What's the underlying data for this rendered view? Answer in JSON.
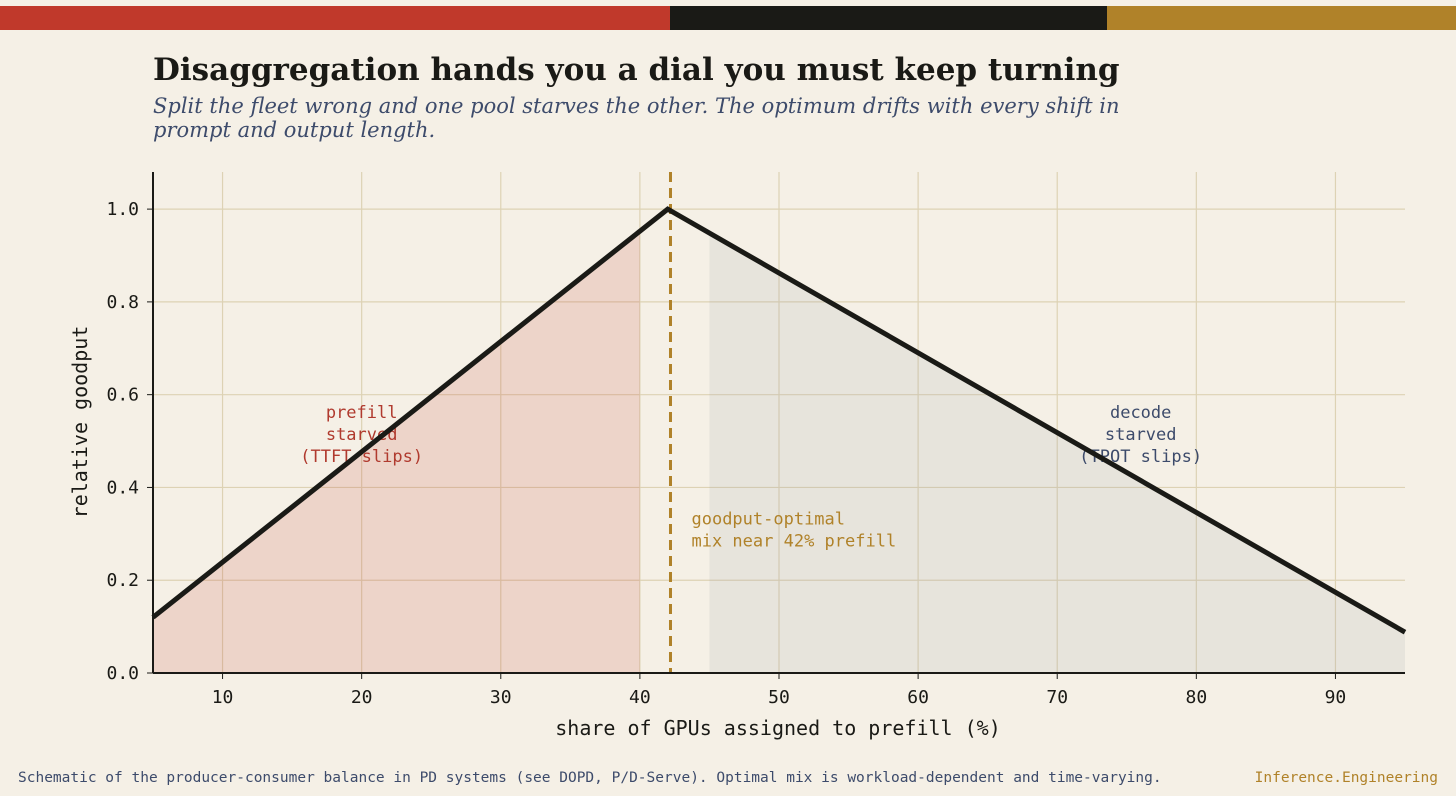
{
  "chart_data": {
    "type": "line",
    "title": "Disaggregation hands you a dial you must keep turning",
    "subtitle": [
      "Split the fleet wrong and one pool starves the other. The optimum drifts with every shift in",
      "prompt and output length."
    ],
    "x_label": "share of GPUs assigned to prefill  (%)",
    "y_label": "relative goodput",
    "x": [
      5,
      42,
      95
    ],
    "series": [
      {
        "color": "#1a1a16",
        "values": [
          0.12,
          1.0,
          0.088
        ]
      }
    ],
    "xlim": [
      5,
      95
    ],
    "ylim": [
      0,
      1.08
    ],
    "xticks": [
      10,
      20,
      30,
      40,
      50,
      60,
      70,
      80,
      90
    ],
    "yticks": [
      {
        "value": 0,
        "label": "0.0"
      },
      {
        "value": 0.2,
        "label": "0.2"
      },
      {
        "value": 0.4,
        "label": "0.4"
      },
      {
        "value": 0.6,
        "label": "0.6"
      },
      {
        "value": 0.8,
        "label": "0.8"
      },
      {
        "value": 1.0,
        "label": "1.0"
      }
    ],
    "grid": true,
    "shaded_regions": [
      {
        "xlim": [
          5,
          40
        ],
        "color": "#c0392b",
        "lines": [
          "prefill",
          "starved",
          "(TTFT slips)"
        ],
        "text_color": "#b03a2e"
      },
      {
        "xlim": [
          45,
          95
        ],
        "color": "#9a9fa8",
        "lines": [
          "decode",
          "starved",
          "(TPOT slips)"
        ],
        "text_color": "#3d4b6b"
      }
    ],
    "reference_line": {
      "x": 42.2,
      "color": "#b08229",
      "lines": [
        "goodput-optimal",
        "mix near 42% prefill"
      ]
    }
  },
  "footer": {
    "note": "Schematic of the producer-consumer balance in PD systems (see DOPD, P/D-Serve). Optimal mix is workload-dependent and time-varying.",
    "brand": "Inference.Engineering"
  }
}
